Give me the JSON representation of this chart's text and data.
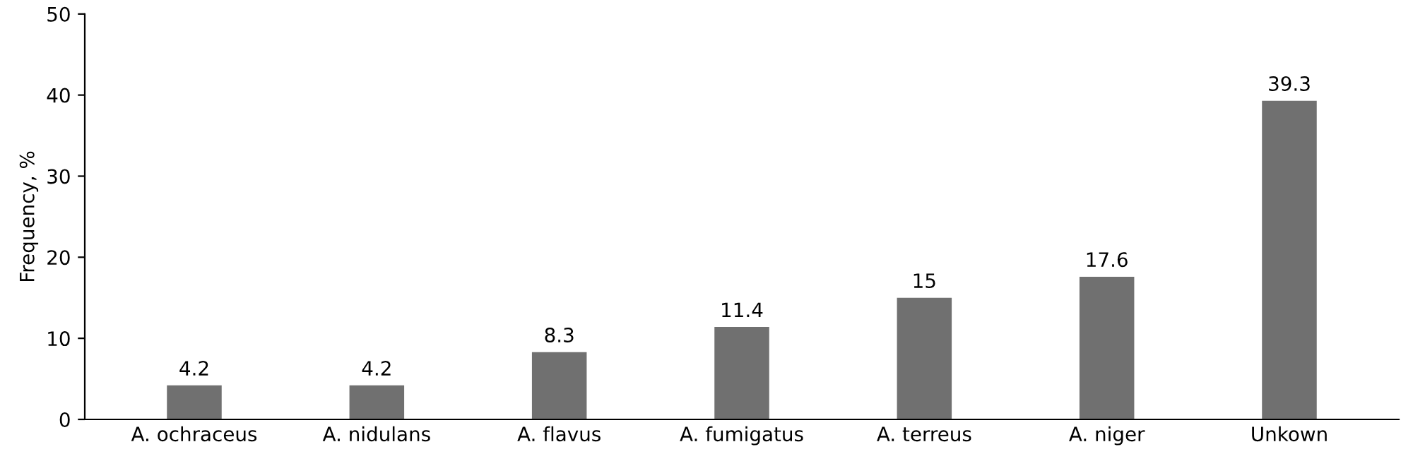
{
  "chart_data": {
    "type": "bar",
    "ylabel": "Frequency, %",
    "categories": [
      "A. ochraceus",
      "A. nidulans",
      "A. flavus",
      "A. fumigatus",
      "A. terreus",
      "A. niger",
      "Unkown"
    ],
    "values": [
      4.2,
      4.2,
      8.3,
      11.4,
      15,
      17.6,
      39.3
    ],
    "color": "#707070",
    "ylim": [
      0,
      50
    ],
    "yticks": [
      0,
      10,
      20,
      30,
      40,
      50
    ],
    "data_labels": true,
    "grid": false
  }
}
